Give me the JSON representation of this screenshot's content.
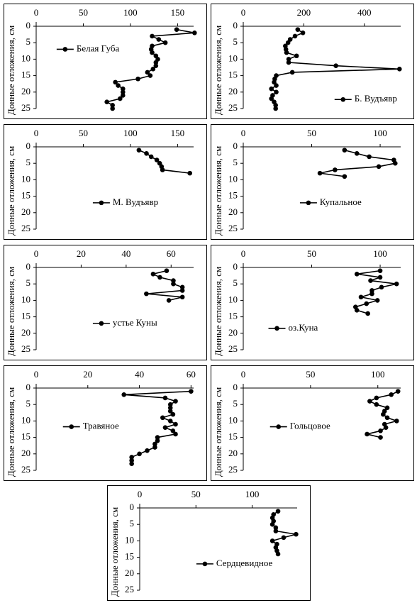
{
  "chart_data": [
    {
      "type": "line",
      "ylabel": "Донные отложения, см",
      "xlim": [
        0,
        167
      ],
      "xticks": [
        0,
        50,
        100,
        150
      ],
      "ylim": [
        0,
        25
      ],
      "yticks": [
        0,
        5,
        10,
        15,
        20,
        25
      ],
      "legend_position": "upper left",
      "depths": [
        1,
        2,
        3,
        4,
        5,
        6,
        7,
        8,
        9,
        10,
        11,
        12,
        13,
        14,
        15,
        16,
        17,
        18,
        19,
        20,
        21,
        22,
        23,
        24,
        25
      ],
      "series": [
        {
          "name": "Белая Губа",
          "color": "#000000",
          "values": [
            149,
            168,
            123,
            130,
            137,
            123,
            122,
            123,
            127,
            129,
            127,
            127,
            124,
            118,
            121,
            108,
            84,
            87,
            92,
            92,
            92,
            89,
            75,
            81,
            81
          ]
        }
      ]
    },
    {
      "type": "line",
      "ylabel": "Донные отложения, см",
      "xlim": [
        0,
        520
      ],
      "xticks": [
        0,
        200,
        400
      ],
      "ylim": [
        0,
        25
      ],
      "yticks": [
        0,
        5,
        10,
        15,
        20,
        25
      ],
      "legend_position": "lower right",
      "depths": [
        1,
        2,
        3,
        4,
        5,
        6,
        7,
        8,
        9,
        10,
        11,
        12,
        13,
        14,
        15,
        16,
        17,
        18,
        19,
        20,
        21,
        22,
        23,
        24,
        25
      ],
      "series": [
        {
          "name": "Б. Вудъявр",
          "color": "#000000",
          "values": [
            180,
            197,
            171,
            155,
            148,
            139,
            141,
            143,
            176,
            150,
            150,
            306,
            516,
            162,
            109,
            104,
            102,
            109,
            93,
            109,
            97,
            93,
            102,
            107,
            107
          ]
        }
      ]
    },
    {
      "type": "line",
      "ylabel": "Донные отложения, см",
      "xlim": [
        0,
        167
      ],
      "xticks": [
        0,
        50,
        100,
        150
      ],
      "ylim": [
        0,
        25
      ],
      "yticks": [
        0,
        5,
        10,
        15,
        20,
        25
      ],
      "legend_position": "lower center",
      "depths": [
        1,
        2,
        3,
        4,
        5,
        6,
        7,
        8
      ],
      "series": [
        {
          "name": "М. Вудъявр",
          "color": "#000000",
          "values": [
            109,
            117,
            122,
            128,
            131,
            133,
            134,
            163
          ]
        }
      ]
    },
    {
      "type": "line",
      "ylabel": "Донные отложения, см",
      "xlim": [
        0,
        115
      ],
      "xticks": [
        0,
        50,
        100
      ],
      "ylim": [
        0,
        25
      ],
      "yticks": [
        0,
        5,
        10,
        15,
        20,
        25
      ],
      "legend_position": "lower center",
      "depths": [
        1,
        2,
        3,
        4,
        5,
        6,
        7,
        8,
        9
      ],
      "series": [
        {
          "name": "Купальное",
          "color": "#000000",
          "values": [
            74,
            83,
            92,
            110,
            111,
            99,
            67,
            56,
            74
          ]
        }
      ]
    },
    {
      "type": "line",
      "ylabel": "Донные отложения, см",
      "xlim": [
        0,
        70
      ],
      "xticks": [
        0,
        20,
        40,
        60
      ],
      "ylim": [
        0,
        25
      ],
      "yticks": [
        0,
        5,
        10,
        15,
        20,
        25
      ],
      "legend_position": "lower center",
      "depths": [
        1,
        2,
        3,
        4,
        5,
        6,
        7,
        8,
        9,
        10
      ],
      "series": [
        {
          "name": "устье Куны",
          "color": "#000000",
          "values": [
            58,
            52,
            55,
            61,
            61,
            65,
            65,
            49,
            65,
            59
          ]
        }
      ]
    },
    {
      "type": "line",
      "ylabel": "Донные отложения, см",
      "xlim": [
        0,
        115
      ],
      "xticks": [
        0,
        50,
        100
      ],
      "ylim": [
        0,
        25
      ],
      "yticks": [
        0,
        5,
        10,
        15,
        20,
        25
      ],
      "legend_position": "lower left",
      "depths": [
        1,
        2,
        3,
        4,
        5,
        6,
        7,
        8,
        9,
        10,
        11,
        12,
        13,
        14
      ],
      "series": [
        {
          "name": "оз.Куна",
          "color": "#000000",
          "values": [
            100,
            83,
            100,
            93,
            112,
            101,
            94,
            94,
            86,
            98,
            90,
            82,
            83,
            91
          ]
        }
      ]
    },
    {
      "type": "line",
      "ylabel": "Донные отложения, см",
      "xlim": [
        0,
        61
      ],
      "xticks": [
        0,
        20,
        40,
        60
      ],
      "ylim": [
        0,
        25
      ],
      "yticks": [
        0,
        5,
        10,
        15,
        20,
        25
      ],
      "legend_position": "center left",
      "depths": [
        1,
        2,
        3,
        4,
        5,
        6,
        7,
        8,
        9,
        10,
        11,
        12,
        13,
        14,
        15,
        16,
        17,
        18,
        19,
        20,
        21,
        22,
        23
      ],
      "series": [
        {
          "name": "Травяное",
          "color": "#000000",
          "values": [
            60,
            34,
            50,
            54,
            52,
            52,
            52,
            53,
            49,
            52,
            54,
            50,
            53,
            54,
            47,
            47,
            46,
            46,
            43,
            40,
            37,
            37,
            37
          ]
        }
      ]
    },
    {
      "type": "line",
      "ylabel": "Донные отложения, см",
      "xlim": [
        0,
        117
      ],
      "xticks": [
        0,
        50,
        100
      ],
      "ylim": [
        0,
        25
      ],
      "yticks": [
        0,
        5,
        10,
        15,
        20,
        25
      ],
      "legend_position": "center left",
      "depths": [
        1,
        2,
        3,
        4,
        5,
        6,
        7,
        8,
        9,
        10,
        11,
        12,
        13,
        14,
        15
      ],
      "series": [
        {
          "name": "Гольцовое",
          "color": "#000000",
          "values": [
            115,
            110,
            99,
            94,
            99,
            107,
            105,
            104,
            107,
            114,
            105,
            106,
            102,
            92,
            102
          ]
        }
      ]
    },
    {
      "type": "line",
      "ylabel": "Донные отложения, см",
      "xlim": [
        0,
        140
      ],
      "xticks": [
        0,
        50,
        100
      ],
      "ylim": [
        0,
        25
      ],
      "yticks": [
        0,
        5,
        10,
        15,
        20,
        25
      ],
      "legend_position": "lower center",
      "depths": [
        1,
        2,
        3,
        4,
        5,
        6,
        7,
        8,
        9,
        10,
        11,
        12,
        13,
        14
      ],
      "series": [
        {
          "name": "Сердцевидное",
          "color": "#000000",
          "values": [
            123,
            119,
            118,
            119,
            118,
            121,
            121,
            139,
            128,
            118,
            122,
            121,
            122,
            123
          ]
        }
      ]
    }
  ]
}
